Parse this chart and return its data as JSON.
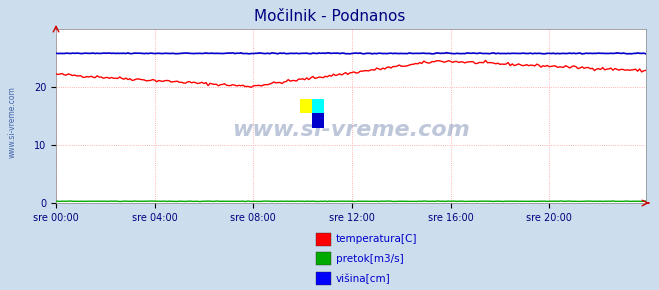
{
  "title": "Močilnik - Podnanos",
  "title_color": "#000080",
  "bg_color": "#ccdded",
  "plot_bg_color": "#ffffff",
  "grid_color": "#ffaaaa",
  "x_labels": [
    "sre 00:00",
    "sre 04:00",
    "sre 08:00",
    "sre 12:00",
    "sre 16:00",
    "sre 20:00"
  ],
  "x_ticks_idx": [
    0,
    48,
    96,
    144,
    192,
    240
  ],
  "n_points": 288,
  "y_min": 0,
  "y_max": 30,
  "y_ticks": [
    0,
    10,
    20
  ],
  "watermark": "www.si-vreme.com",
  "legend": [
    {
      "label": "  temperatura[C]",
      "color": "#ff0000"
    },
    {
      "label": "  pretok[m3/s]",
      "color": "#00aa00"
    },
    {
      "label": "  višina[cm]",
      "color": "#0000ff"
    }
  ],
  "visina_value": 25.8,
  "pretok_value": 0.3
}
